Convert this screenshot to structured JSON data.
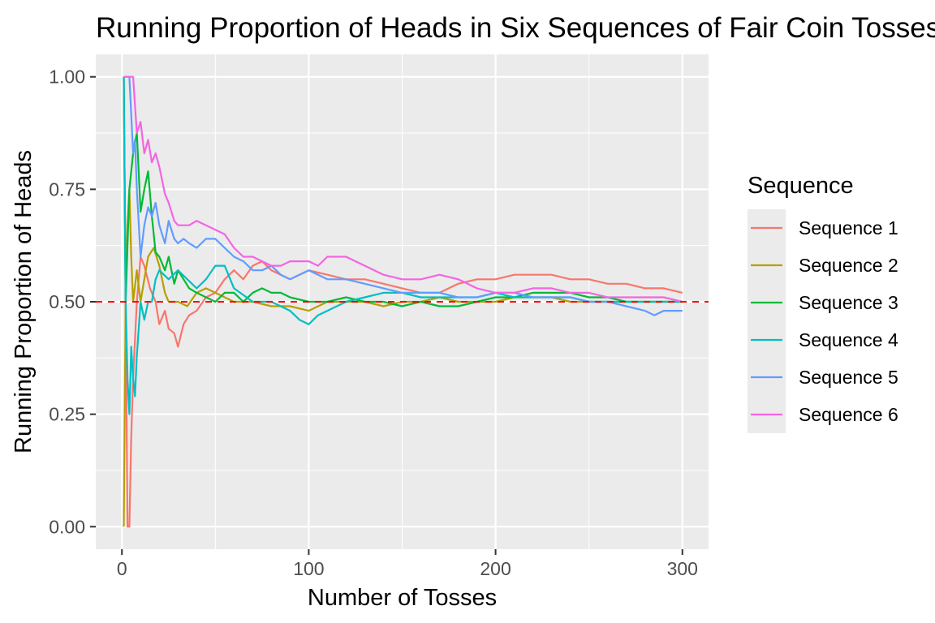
{
  "chart_data": {
    "type": "line",
    "title": "Running Proportion of Heads in Six Sequences of Fair Coin Tosses",
    "xlabel": "Number of Tosses",
    "ylabel": "Running Proportion of Heads",
    "xlim": [
      -14,
      314
    ],
    "ylim": [
      -0.05,
      1.05
    ],
    "x_ticks": [
      0,
      100,
      200,
      300
    ],
    "x_tick_labels": [
      "0",
      "100",
      "200",
      "300"
    ],
    "y_ticks": [
      0,
      0.25,
      0.5,
      0.75,
      1
    ],
    "y_tick_labels": [
      "0.00",
      "0.25",
      "0.50",
      "0.75",
      "1.00"
    ],
    "grid": true,
    "reference_line": {
      "y": 0.5,
      "color": "#FF0000",
      "style": "dashed"
    },
    "legend": {
      "title": "Sequence",
      "position": "right"
    },
    "series": [
      {
        "name": "Sequence 1",
        "color": "#F8766D",
        "x": [
          1,
          2,
          3,
          4,
          5,
          6,
          8,
          10,
          12,
          15,
          18,
          20,
          23,
          25,
          28,
          30,
          33,
          36,
          40,
          45,
          50,
          55,
          60,
          65,
          70,
          75,
          80,
          90,
          100,
          110,
          120,
          130,
          140,
          150,
          160,
          170,
          180,
          190,
          200,
          210,
          220,
          230,
          240,
          250,
          260,
          270,
          280,
          290,
          300
        ],
        "values": [
          1.0,
          0.5,
          0.0,
          0.0,
          0.2,
          0.33,
          0.5,
          0.6,
          0.58,
          0.53,
          0.5,
          0.45,
          0.48,
          0.44,
          0.43,
          0.4,
          0.45,
          0.47,
          0.48,
          0.51,
          0.52,
          0.55,
          0.57,
          0.55,
          0.58,
          0.59,
          0.57,
          0.55,
          0.57,
          0.56,
          0.55,
          0.55,
          0.54,
          0.53,
          0.52,
          0.52,
          0.54,
          0.55,
          0.55,
          0.56,
          0.56,
          0.56,
          0.55,
          0.55,
          0.54,
          0.54,
          0.53,
          0.53,
          0.52
        ]
      },
      {
        "name": "Sequence 2",
        "color": "#B79F00",
        "x": [
          1,
          2,
          3,
          4,
          5,
          6,
          8,
          10,
          12,
          14,
          17,
          20,
          23,
          25,
          28,
          30,
          35,
          40,
          45,
          50,
          55,
          60,
          70,
          80,
          90,
          100,
          110,
          120,
          130,
          140,
          150,
          160,
          170,
          180,
          190,
          200,
          210,
          220,
          230,
          240,
          250,
          260,
          270,
          280,
          290,
          300
        ],
        "values": [
          0.0,
          0.5,
          0.67,
          0.75,
          0.6,
          0.5,
          0.57,
          0.5,
          0.55,
          0.6,
          0.62,
          0.58,
          0.52,
          0.5,
          0.5,
          0.5,
          0.49,
          0.52,
          0.53,
          0.52,
          0.51,
          0.5,
          0.5,
          0.49,
          0.49,
          0.48,
          0.5,
          0.5,
          0.5,
          0.49,
          0.5,
          0.5,
          0.51,
          0.5,
          0.5,
          0.5,
          0.51,
          0.51,
          0.51,
          0.5,
          0.5,
          0.5,
          0.5,
          0.5,
          0.5,
          0.5
        ]
      },
      {
        "name": "Sequence 3",
        "color": "#00BA38",
        "x": [
          1,
          2,
          4,
          6,
          8,
          10,
          12,
          14,
          16,
          18,
          20,
          23,
          25,
          28,
          30,
          33,
          36,
          40,
          45,
          50,
          55,
          60,
          65,
          70,
          75,
          80,
          85,
          90,
          100,
          110,
          120,
          130,
          140,
          150,
          160,
          170,
          180,
          190,
          200,
          210,
          220,
          230,
          240,
          250,
          260,
          270,
          280,
          290,
          300
        ],
        "values": [
          1.0,
          0.5,
          0.75,
          0.83,
          0.875,
          0.7,
          0.75,
          0.79,
          0.69,
          0.61,
          0.6,
          0.57,
          0.6,
          0.54,
          0.57,
          0.55,
          0.53,
          0.52,
          0.51,
          0.5,
          0.52,
          0.52,
          0.5,
          0.52,
          0.53,
          0.52,
          0.52,
          0.51,
          0.5,
          0.5,
          0.51,
          0.5,
          0.5,
          0.49,
          0.5,
          0.49,
          0.49,
          0.5,
          0.51,
          0.51,
          0.52,
          0.52,
          0.52,
          0.51,
          0.51,
          0.5,
          0.5,
          0.5,
          0.5
        ]
      },
      {
        "name": "Sequence 4",
        "color": "#00BFC4",
        "x": [
          1,
          2,
          3,
          4,
          5,
          6,
          7,
          8,
          10,
          12,
          14,
          16,
          18,
          20,
          25,
          30,
          35,
          40,
          45,
          50,
          55,
          60,
          70,
          80,
          90,
          95,
          100,
          105,
          110,
          120,
          130,
          140,
          150,
          160,
          170,
          180,
          190,
          200,
          210,
          220,
          230,
          240,
          250,
          260,
          270,
          280,
          290,
          300
        ],
        "values": [
          1.0,
          0.5,
          0.33,
          0.25,
          0.4,
          0.33,
          0.29,
          0.38,
          0.5,
          0.46,
          0.5,
          0.5,
          0.55,
          0.57,
          0.55,
          0.57,
          0.55,
          0.53,
          0.55,
          0.58,
          0.58,
          0.53,
          0.5,
          0.5,
          0.48,
          0.46,
          0.45,
          0.47,
          0.48,
          0.5,
          0.51,
          0.52,
          0.52,
          0.51,
          0.51,
          0.51,
          0.51,
          0.52,
          0.51,
          0.51,
          0.51,
          0.51,
          0.5,
          0.5,
          0.5,
          0.5,
          0.5,
          0.5
        ]
      },
      {
        "name": "Sequence 5",
        "color": "#619CFF",
        "x": [
          1,
          2,
          4,
          6,
          7,
          8,
          10,
          12,
          14,
          16,
          18,
          20,
          23,
          25,
          28,
          30,
          33,
          36,
          40,
          45,
          50,
          55,
          60,
          65,
          70,
          75,
          80,
          85,
          90,
          95,
          100,
          110,
          120,
          130,
          140,
          150,
          160,
          170,
          180,
          190,
          200,
          210,
          220,
          230,
          240,
          250,
          260,
          270,
          280,
          285,
          290,
          300
        ],
        "values": [
          1.0,
          1.0,
          1.0,
          0.83,
          0.86,
          0.75,
          0.6,
          0.67,
          0.71,
          0.69,
          0.72,
          0.67,
          0.63,
          0.68,
          0.64,
          0.63,
          0.64,
          0.63,
          0.62,
          0.64,
          0.64,
          0.62,
          0.6,
          0.59,
          0.57,
          0.57,
          0.58,
          0.56,
          0.55,
          0.56,
          0.57,
          0.55,
          0.55,
          0.54,
          0.53,
          0.52,
          0.52,
          0.52,
          0.51,
          0.51,
          0.52,
          0.52,
          0.51,
          0.51,
          0.51,
          0.5,
          0.5,
          0.49,
          0.48,
          0.47,
          0.48,
          0.48
        ]
      },
      {
        "name": "Sequence 6",
        "color": "#F564E3",
        "x": [
          1,
          2,
          4,
          6,
          8,
          10,
          12,
          14,
          16,
          18,
          20,
          23,
          25,
          28,
          30,
          33,
          36,
          40,
          45,
          50,
          55,
          60,
          65,
          70,
          75,
          80,
          85,
          90,
          95,
          100,
          105,
          110,
          115,
          120,
          125,
          130,
          140,
          150,
          160,
          170,
          180,
          190,
          200,
          210,
          220,
          230,
          240,
          250,
          260,
          270,
          280,
          290,
          300
        ],
        "values": [
          1.0,
          1.0,
          1.0,
          1.0,
          0.875,
          0.9,
          0.83,
          0.86,
          0.81,
          0.83,
          0.8,
          0.74,
          0.72,
          0.68,
          0.67,
          0.67,
          0.67,
          0.68,
          0.67,
          0.66,
          0.65,
          0.62,
          0.6,
          0.6,
          0.59,
          0.58,
          0.58,
          0.59,
          0.59,
          0.59,
          0.58,
          0.6,
          0.6,
          0.6,
          0.59,
          0.58,
          0.56,
          0.55,
          0.55,
          0.56,
          0.55,
          0.53,
          0.52,
          0.52,
          0.53,
          0.53,
          0.52,
          0.52,
          0.51,
          0.51,
          0.51,
          0.51,
          0.5
        ]
      }
    ]
  }
}
